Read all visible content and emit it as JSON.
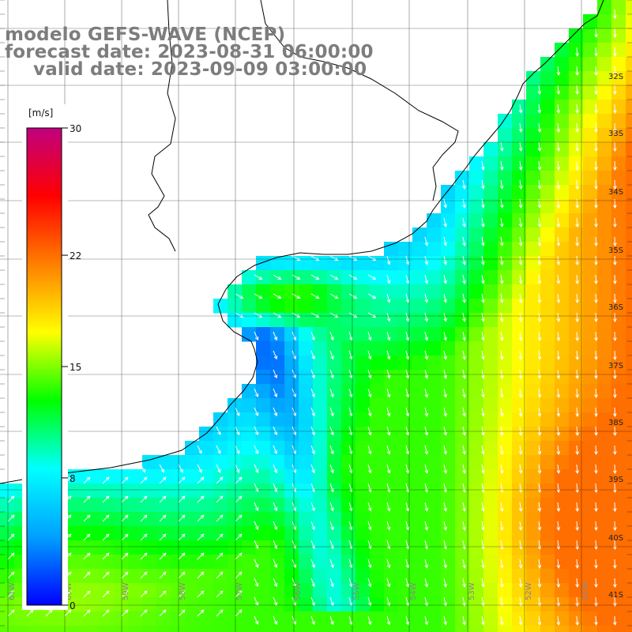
{
  "header": {
    "model": "modelo GEFS-WAVE (NCEP)",
    "forecast": "forecast date: 2023-08-31 06:00:00",
    "valid": "valid date: 2023-09-09 03:00:00"
  },
  "colorbar": {
    "unit": "[m/s]",
    "min": 0,
    "max": 30,
    "ticks": [
      {
        "label": "30",
        "value": 30
      },
      {
        "label": "22",
        "value": 22
      },
      {
        "label": "15",
        "value": 15
      },
      {
        "label": "8",
        "value": 8
      },
      {
        "label": "0",
        "value": 0
      }
    ],
    "stops": [
      "#0000ff",
      "#00a0ff",
      "#00ffff",
      "#00ff00",
      "#ffff00",
      "#ff7f00",
      "#ff0000",
      "#c0007f"
    ]
  },
  "axes": {
    "lat_labels": [
      "32S",
      "33S",
      "34S",
      "35S",
      "36S",
      "37S",
      "38S",
      "39S",
      "40S",
      "41S"
    ],
    "lon_labels": [
      "61W",
      "60W",
      "59W",
      "58W",
      "57W",
      "56W",
      "55W",
      "54W",
      "53W",
      "52W",
      "51W"
    ]
  },
  "map_data": {
    "type": "wind-field-map",
    "variable": "wind speed",
    "unit": "m/s",
    "colorscale_range": [
      0,
      30
    ],
    "lat_range": [
      "41S",
      "31S"
    ],
    "lon_range": [
      "61W",
      "51W"
    ],
    "wind_direction": "mostly southward, northeasterly winds",
    "regions": [
      {
        "area": "Rio de la Plata estuary",
        "speed_ms": [
          10,
          13
        ]
      },
      {
        "area": "coastal band off Uruguay and southern Brazil",
        "speed_ms": [
          4,
          7
        ]
      },
      {
        "area": "offshore east of 52W",
        "speed_ms": [
          16,
          20
        ]
      },
      {
        "area": "southeast corner near 40S 51W",
        "speed_ms": [
          19,
          21
        ]
      },
      {
        "area": "southwest near 39S 61W",
        "speed_ms": [
          10,
          13
        ]
      }
    ]
  }
}
